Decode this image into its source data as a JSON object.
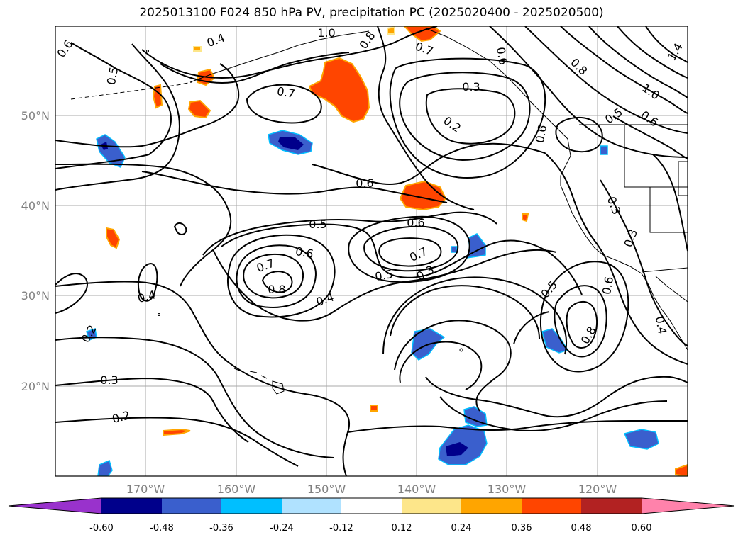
{
  "title": "2025013100 F024 850 hPa PV, precipitation PC (2025020400 - 2025020500)",
  "lat_labels": [
    "50°N",
    "40°N",
    "30°N",
    "20°N"
  ],
  "lon_labels": [
    "170°W",
    "160°W",
    "150°W",
    "140°W",
    "130°W",
    "120°W"
  ],
  "contour_labels": [
    "1.0",
    "0.8",
    "0.7",
    "0.4",
    "0.6",
    "0.5",
    "0.7",
    "0.3",
    "0.2",
    "0.6",
    "1.4",
    "0.8",
    "1.0",
    "0.5",
    "0.6",
    "0.6",
    "0.6",
    "0.5",
    "0.6",
    "0.6",
    "0.7",
    "0.7",
    "0.5",
    "0.3",
    "0.8",
    "0.4",
    "0.4",
    "0.5",
    "0.6",
    "0.8",
    "0.3",
    "0.3",
    "0.4",
    "0.2",
    "0.3",
    "0.2"
  ],
  "colorbar": {
    "ticks": [
      "-0.60",
      "-0.48",
      "-0.36",
      "-0.24",
      "-0.12",
      "0.12",
      "0.24",
      "0.36",
      "0.48",
      "0.60"
    ],
    "colors": [
      "#9932cc",
      "#00008b",
      "#3a5fcd",
      "#00bfff",
      "#b0e2ff",
      "#ffffff",
      "#fde68a",
      "#ffa500",
      "#ff4500",
      "#b22222",
      "#ff82ab"
    ]
  },
  "palette": {
    "strong_positive": "#ff4500",
    "moderate_positive": "#ffa500",
    "weak_positive": "#fde68a",
    "strong_negative": "#00008b",
    "moderate_negative": "#3a5fcd",
    "weak_negative": "#00bfff",
    "contour": "#000000",
    "grid": "#a0a0a0",
    "axis_label": "#808080"
  }
}
